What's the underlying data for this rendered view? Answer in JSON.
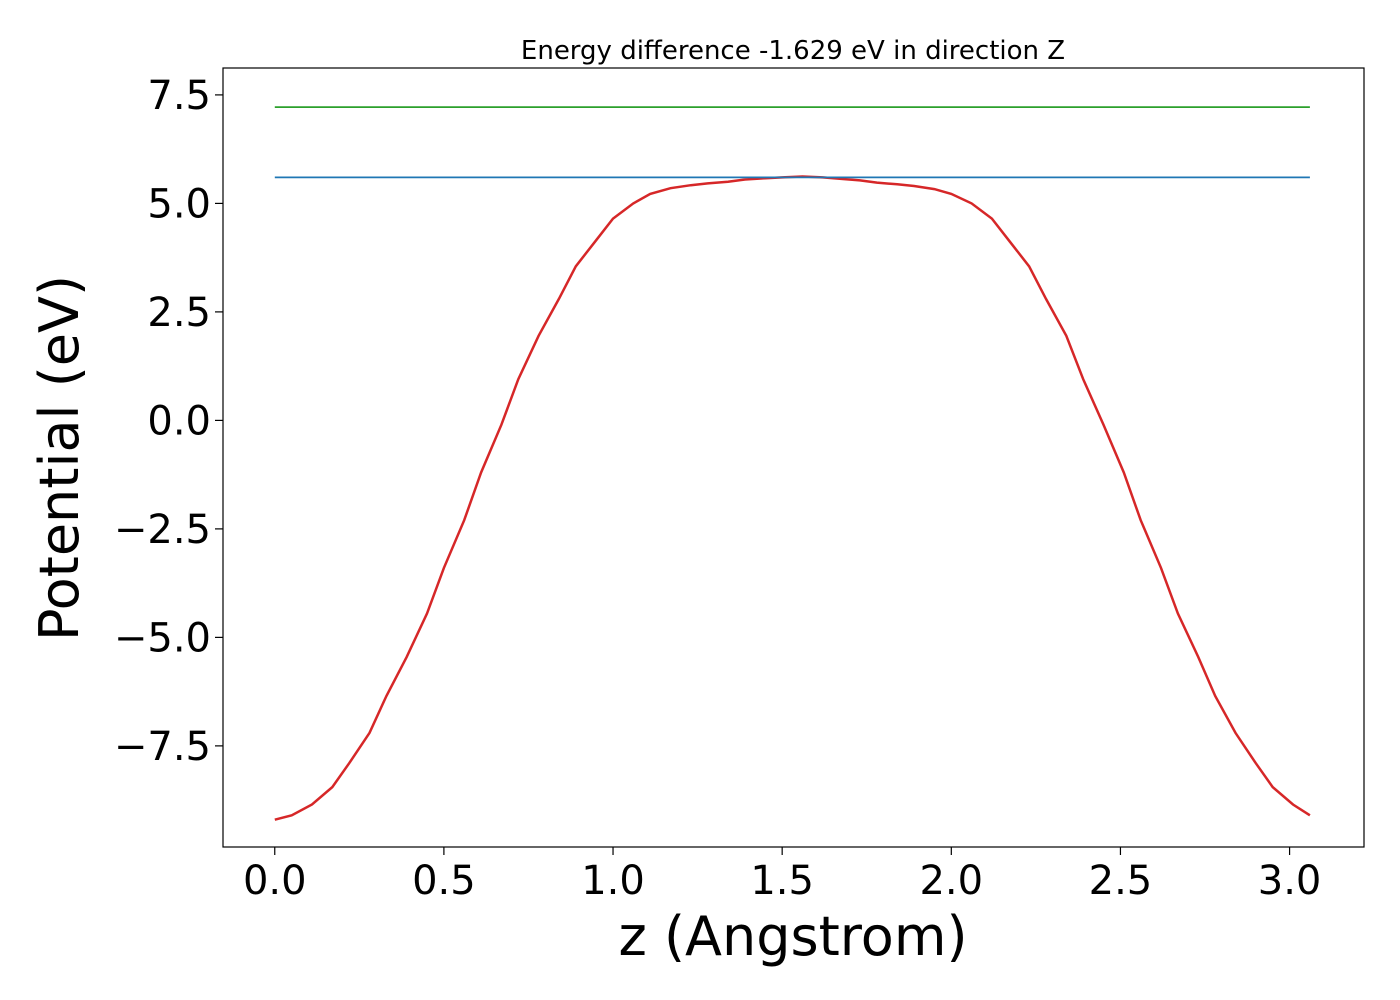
{
  "chart_data": {
    "type": "line",
    "title": "Energy difference -1.629 eV in direction Z",
    "xlabel": "z (Angstrom)",
    "ylabel": "Potential (eV)",
    "xlim": [
      -0.153,
      3.22
    ],
    "ylim": [
      -9.83,
      8.12
    ],
    "xticks": [
      0.0,
      0.5,
      1.0,
      1.5,
      2.0,
      2.5,
      3.0
    ],
    "xtick_labels": [
      "0.0",
      "0.5",
      "1.0",
      "1.5",
      "2.0",
      "2.5",
      "3.0"
    ],
    "yticks": [
      7.5,
      5.0,
      2.5,
      0.0,
      -2.5,
      -5.0,
      -7.5
    ],
    "ytick_labels": [
      "7.5",
      "5.0",
      "2.5",
      "0.0",
      "−2.5",
      "−5.0",
      "−7.5"
    ],
    "grid": false,
    "series": [
      {
        "color": "#d62728",
        "x": [
          0.0,
          0.05,
          0.11,
          0.17,
          0.22,
          0.28,
          0.33,
          0.39,
          0.45,
          0.5,
          0.56,
          0.61,
          0.67,
          0.72,
          0.78,
          0.84,
          0.89,
          0.95,
          1.0,
          1.06,
          1.11,
          1.17,
          1.23,
          1.28,
          1.34,
          1.39,
          1.45,
          1.5,
          1.56,
          1.62,
          1.67,
          1.73,
          1.78,
          1.84,
          1.89,
          1.95,
          2.0,
          2.06,
          2.12,
          2.17,
          2.23,
          2.28,
          2.34,
          2.39,
          2.45,
          2.51,
          2.56,
          2.62,
          2.67,
          2.73,
          2.78,
          2.84,
          2.9,
          2.95,
          3.01,
          3.06
        ],
        "y": [
          -9.2,
          -9.1,
          -8.85,
          -8.45,
          -7.9,
          -7.2,
          -6.35,
          -5.45,
          -4.45,
          -3.4,
          -2.3,
          -1.2,
          -0.1,
          0.95,
          1.95,
          2.8,
          3.55,
          4.15,
          4.65,
          5.0,
          5.22,
          5.35,
          5.42,
          5.46,
          5.5,
          5.55,
          5.58,
          5.6,
          5.62,
          5.6,
          5.57,
          5.53,
          5.48,
          5.44,
          5.4,
          5.33,
          5.22,
          5.0,
          4.65,
          4.15,
          3.55,
          2.8,
          1.95,
          0.95,
          -0.1,
          -1.2,
          -2.3,
          -3.4,
          -4.45,
          -5.45,
          -6.35,
          -7.2,
          -7.9,
          -8.45,
          -8.85,
          -9.1
        ]
      },
      {
        "color": "#1f77b4",
        "x": [
          0.0,
          3.06
        ],
        "y": [
          5.6,
          5.6
        ]
      },
      {
        "color": "#2ca02c",
        "x": [
          0.0,
          3.06
        ],
        "y": [
          7.22,
          7.22
        ]
      }
    ]
  }
}
